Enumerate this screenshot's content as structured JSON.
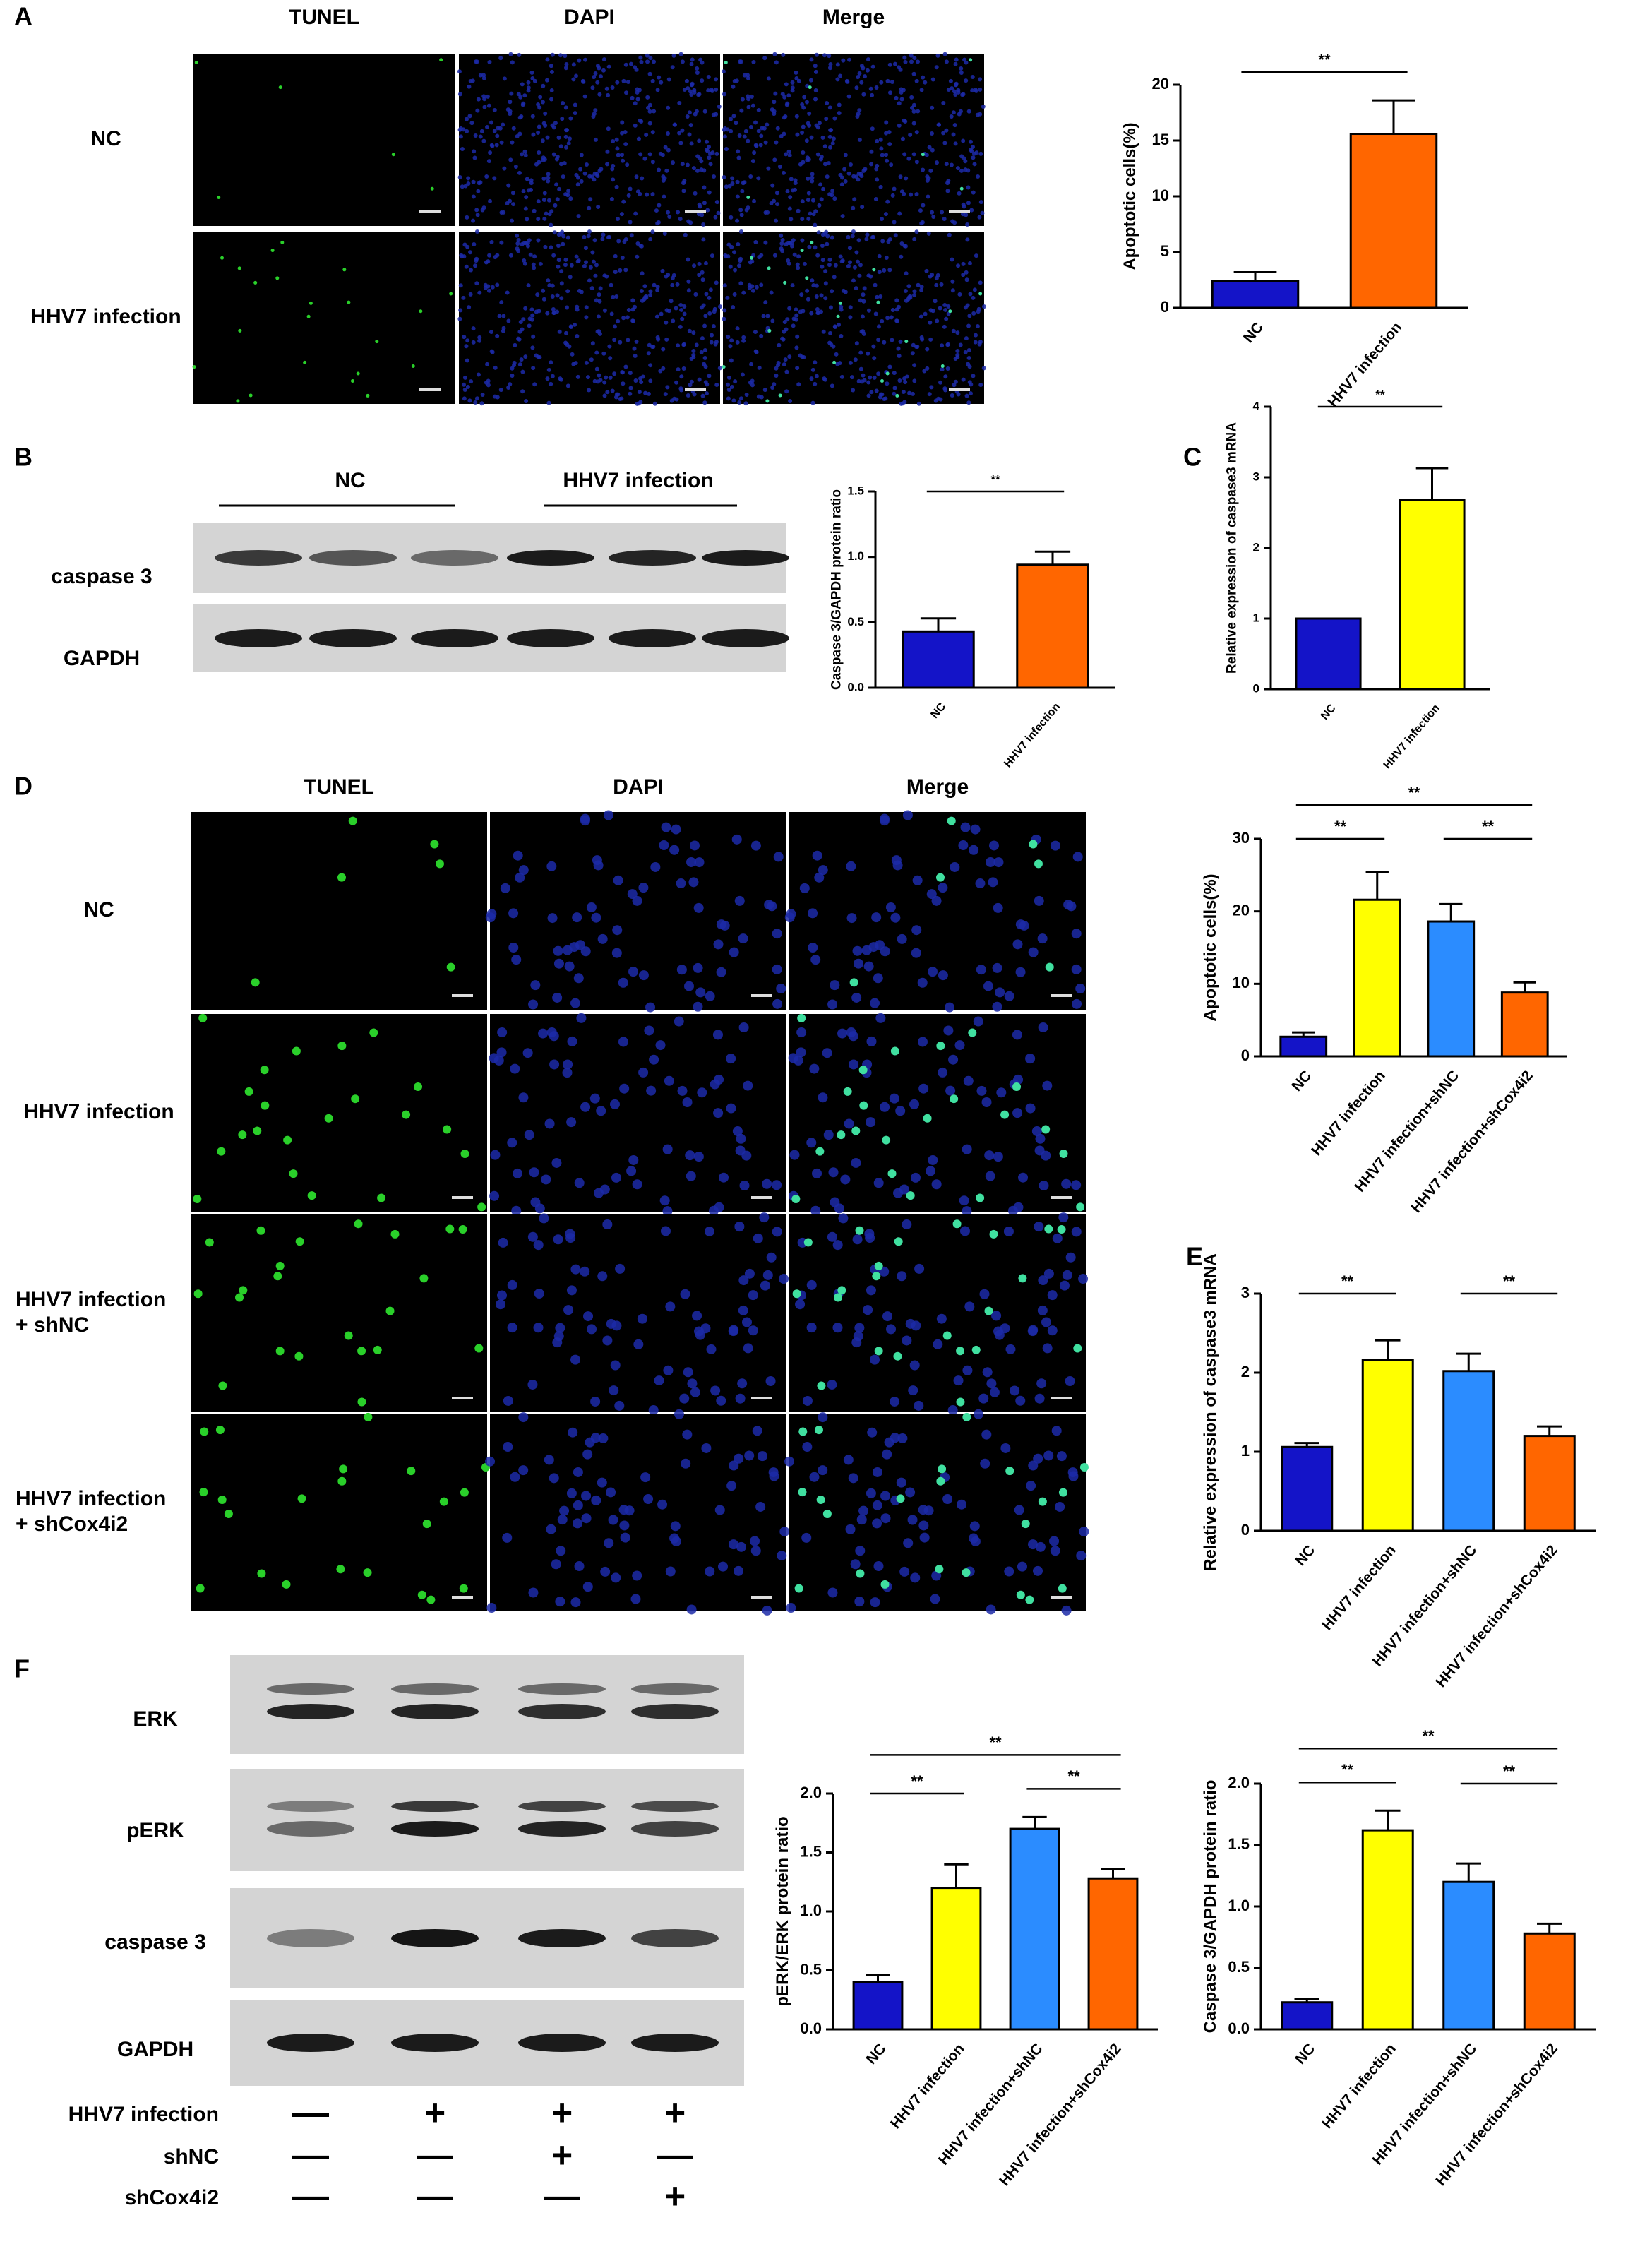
{
  "panel_labels": [
    "A",
    "B",
    "C",
    "D",
    "E",
    "F"
  ],
  "micrographs_a": {
    "columns": [
      "TUNEL",
      "DAPI",
      "Merge"
    ],
    "rows": [
      [
        "NC"
      ],
      [
        "HHV7 infection"
      ]
    ]
  },
  "micrographs_d": {
    "columns": [
      "TUNEL",
      "DAPI",
      "Merge"
    ],
    "rows": [
      [
        "NC"
      ],
      [
        "HHV7 infection"
      ],
      [
        "HHV7 infection",
        "+ shNC"
      ],
      [
        "HHV7 infection",
        "+ shCox4i2"
      ]
    ]
  },
  "blot_b": {
    "groups": [
      "NC",
      "HHV7 infection"
    ],
    "rows": [
      "caspase 3",
      "GAPDH"
    ]
  },
  "blot_f": {
    "rows": [
      "ERK",
      "pERK",
      "caspase 3",
      "GAPDH"
    ],
    "treatments": [
      {
        "label": "HHV7 infection",
        "signs": [
          "—",
          "+",
          "+",
          "+"
        ]
      },
      {
        "label": "shNC",
        "signs": [
          "—",
          "—",
          "+",
          "—"
        ]
      },
      {
        "label": "shCox4i2",
        "signs": [
          "—",
          "—",
          "—",
          "+"
        ]
      }
    ]
  },
  "chart_data": [
    {
      "type": "bar",
      "ylabel": "Apoptotic cells(%)",
      "categories": [
        "NC",
        "HHV7 infection"
      ],
      "values": [
        2.4,
        15.6
      ],
      "errors": [
        0.8,
        3.0
      ],
      "colors": [
        "#1414c8",
        "#ff6600"
      ],
      "ylim": [
        0,
        20
      ],
      "yticks": [
        0,
        5,
        10,
        15,
        20
      ],
      "comparisons": [
        {
          "pair": [
            0,
            1
          ],
          "label": "**"
        }
      ]
    },
    {
      "type": "bar",
      "ylabel": "Caspase 3/GAPDH protein ratio",
      "categories": [
        "NC",
        "HHV7 infection"
      ],
      "values": [
        0.43,
        0.94
      ],
      "errors": [
        0.1,
        0.1
      ],
      "colors": [
        "#1414c8",
        "#ff6600"
      ],
      "ylim": [
        0,
        1.5
      ],
      "yticks": [
        {
          "value": 0,
          "label": "0.0"
        },
        0.5,
        {
          "value": 1,
          "label": "1.0"
        },
        1.5
      ],
      "comparisons": [
        {
          "pair": [
            0,
            1
          ],
          "label": "**"
        }
      ]
    },
    {
      "type": "bar",
      "ylabel": "Relative expression of caspase3 mRNA",
      "categories": [
        "NC",
        "HHV7 infection"
      ],
      "values": [
        1.0,
        2.68
      ],
      "errors": [
        0,
        0.45
      ],
      "colors": [
        "#1414c8",
        "#ffff00"
      ],
      "ylim": [
        0,
        4
      ],
      "yticks": [
        0,
        1,
        2,
        3,
        4
      ],
      "comparisons": [
        {
          "pair": [
            0,
            1
          ],
          "label": "**"
        }
      ]
    },
    {
      "type": "bar",
      "ylabel": "Apoptotic cells(%)",
      "categories": [
        "NC",
        "HHV7 infection",
        "HHV7 infection+shNC",
        "HHV7 infection+shCox4i2"
      ],
      "values": [
        2.7,
        21.6,
        18.6,
        8.8
      ],
      "errors": [
        0.6,
        3.8,
        2.4,
        1.4
      ],
      "colors": [
        "#1414c8",
        "#ffff00",
        "#2b8cff",
        "#ff6600"
      ],
      "ylim": [
        0,
        30
      ],
      "yticks": [
        0,
        10,
        20,
        30
      ],
      "comparisons": [
        {
          "pair": [
            0,
            1
          ],
          "label": "**"
        },
        {
          "pair": [
            2,
            3
          ],
          "label": "**"
        },
        {
          "pair": [
            0,
            3
          ],
          "label": "**"
        }
      ]
    },
    {
      "type": "bar",
      "ylabel": "Relative expression of caspase3 mRNA",
      "categories": [
        "NC",
        "HHV7 infection",
        "HHV7 infection+shNC",
        "HHV7 infection+shCox4i2"
      ],
      "values": [
        1.06,
        2.16,
        2.02,
        1.2
      ],
      "errors": [
        0.05,
        0.25,
        0.22,
        0.12
      ],
      "colors": [
        "#1414c8",
        "#ffff00",
        "#2b8cff",
        "#ff6600"
      ],
      "ylim": [
        0,
        3
      ],
      "yticks": [
        0,
        1,
        2,
        3
      ],
      "comparisons": [
        {
          "pair": [
            0,
            1
          ],
          "label": "**"
        },
        {
          "pair": [
            2,
            3
          ],
          "label": "**"
        }
      ]
    },
    {
      "type": "bar",
      "ylabel": "pERK/ERK protein ratio",
      "categories": [
        "NC",
        "HHV7 infection",
        "HHV7 infection+shNC",
        "HHV7 infection+shCox4i2"
      ],
      "values": [
        0.4,
        1.2,
        1.7,
        1.28
      ],
      "errors": [
        0.06,
        0.2,
        0.1,
        0.08
      ],
      "colors": [
        "#1414c8",
        "#ffff00",
        "#2b8cff",
        "#ff6600"
      ],
      "ylim": [
        0,
        2
      ],
      "yticks": [
        {
          "value": 0,
          "label": "0.0"
        },
        0.5,
        {
          "value": 1,
          "label": "1.0"
        },
        1.5,
        {
          "value": 2,
          "label": "2.0"
        }
      ],
      "comparisons": [
        {
          "pair": [
            0,
            1
          ],
          "label": "**"
        },
        {
          "pair": [
            2,
            3
          ],
          "label": "**"
        },
        {
          "pair": [
            0,
            3
          ],
          "label": "**"
        }
      ]
    },
    {
      "type": "bar",
      "ylabel": "Caspase 3/GAPDH protein ratio",
      "categories": [
        "NC",
        "HHV7 infection",
        "HHV7 infection+shNC",
        "HHV7 infection+shCox4i2"
      ],
      "values": [
        0.22,
        1.62,
        1.2,
        0.78
      ],
      "errors": [
        0.03,
        0.16,
        0.15,
        0.08
      ],
      "colors": [
        "#1414c8",
        "#ffff00",
        "#2b8cff",
        "#ff6600"
      ],
      "ylim": [
        0,
        2
      ],
      "yticks": [
        {
          "value": 0,
          "label": "0.0"
        },
        0.5,
        {
          "value": 1,
          "label": "1.0"
        },
        1.5,
        {
          "value": 2,
          "label": "2.0"
        }
      ],
      "comparisons": [
        {
          "pair": [
            0,
            1
          ],
          "label": "**"
        },
        {
          "pair": [
            2,
            3
          ],
          "label": "**"
        },
        {
          "pair": [
            0,
            3
          ],
          "label": "**"
        }
      ]
    }
  ]
}
